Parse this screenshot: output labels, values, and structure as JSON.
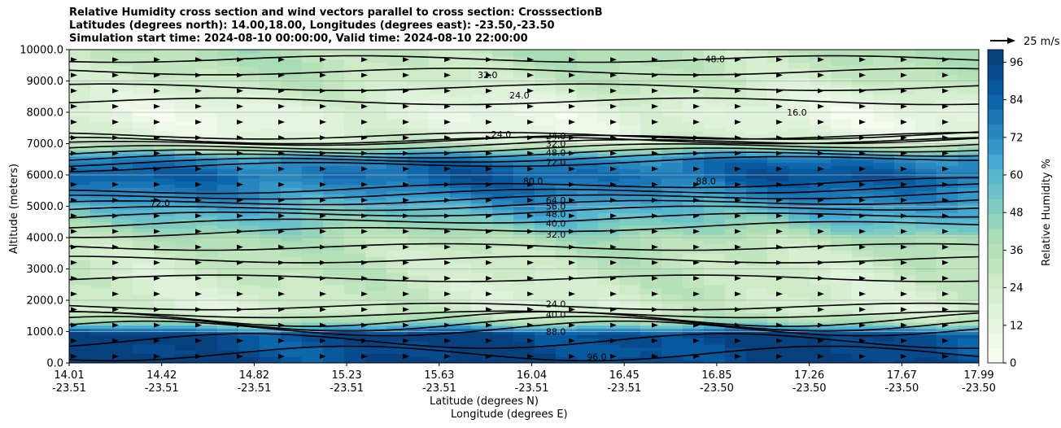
{
  "title_lines": [
    "Relative Humidity cross section and wind vectors parallel to cross section: CrosssectionB",
    "Latitudes (degrees north): 14.00,18.00, Longitudes (degrees east): -23.50,-23.50",
    "Simulation start time: 2024-08-10 00:00:00, Valid time: 2024-08-10 22:00:00"
  ],
  "chart_data": {
    "type": "heatmap",
    "title": "Relative Humidity cross section and wind vectors parallel to cross section: CrosssectionB",
    "ylabel": "Altitude (meters)",
    "xlabel_lines": [
      "Latitude (degrees N)",
      "Longitude (degrees E)"
    ],
    "ylim": [
      0,
      10000
    ],
    "yticks": [
      "0.0",
      "1000.0",
      "2000.0",
      "3000.0",
      "4000.0",
      "5000.0",
      "6000.0",
      "7000.0",
      "8000.0",
      "9000.0",
      "10000.0"
    ],
    "xticks": [
      {
        "lat": "14.01",
        "lon": "-23.51"
      },
      {
        "lat": "14.42",
        "lon": "-23.51"
      },
      {
        "lat": "14.82",
        "lon": "-23.51"
      },
      {
        "lat": "15.23",
        "lon": "-23.51"
      },
      {
        "lat": "15.63",
        "lon": "-23.51"
      },
      {
        "lat": "16.04",
        "lon": "-23.51"
      },
      {
        "lat": "16.45",
        "lon": "-23.51"
      },
      {
        "lat": "16.85",
        "lon": "-23.50"
      },
      {
        "lat": "17.26",
        "lon": "-23.50"
      },
      {
        "lat": "17.67",
        "lon": "-23.50"
      },
      {
        "lat": "17.99",
        "lon": "-23.50"
      }
    ],
    "grid": "horizontal",
    "colorbar": {
      "label": "Relative Humidity %",
      "ticks": [
        "0",
        "12",
        "24",
        "36",
        "48",
        "60",
        "72",
        "84",
        "96"
      ],
      "range": [
        0,
        100
      ],
      "colors": [
        "#f7fcf0",
        "#eef8e9",
        "#e6f5e1",
        "#dff2da",
        "#d6efd0",
        "#cdebc6",
        "#c1e6be",
        "#b5e1b8",
        "#a8ddb5",
        "#94d4ba",
        "#7ecbc0",
        "#6bc3c9",
        "#57b7cf",
        "#44a8d0",
        "#3597c8",
        "#2887bf",
        "#1b77b6",
        "#0e66ab",
        "#08589e",
        "#084a8e",
        "#08407e"
      ]
    },
    "vector_key": "25 m/s",
    "vertical_profile": [
      {
        "alt": 0,
        "rh": 96
      },
      {
        "alt": 400,
        "rh": 92
      },
      {
        "alt": 900,
        "rh": 96
      },
      {
        "alt": 1300,
        "rh": 40
      },
      {
        "alt": 1700,
        "rh": 22
      },
      {
        "alt": 2500,
        "rh": 26
      },
      {
        "alt": 3500,
        "rh": 30
      },
      {
        "alt": 4000,
        "rh": 36
      },
      {
        "alt": 4500,
        "rh": 48
      },
      {
        "alt": 5000,
        "rh": 60
      },
      {
        "alt": 5500,
        "rh": 72
      },
      {
        "alt": 6000,
        "rh": 82
      },
      {
        "alt": 6500,
        "rh": 72
      },
      {
        "alt": 7000,
        "rh": 24
      },
      {
        "alt": 7500,
        "rh": 14
      },
      {
        "alt": 8000,
        "rh": 12
      },
      {
        "alt": 8500,
        "rh": 20
      },
      {
        "alt": 9000,
        "rh": 28
      },
      {
        "alt": 10000,
        "rh": 34
      }
    ],
    "contour_labels": [
      {
        "x": 0.535,
        "alt": 1880,
        "text": "24.0"
      },
      {
        "x": 0.535,
        "alt": 1540,
        "text": "40.0"
      },
      {
        "x": 0.535,
        "alt": 1000,
        "text": "88.0"
      },
      {
        "x": 0.535,
        "alt": 4100,
        "text": "32.0"
      },
      {
        "x": 0.535,
        "alt": 4450,
        "text": "40.0"
      },
      {
        "x": 0.535,
        "alt": 4750,
        "text": "48.0"
      },
      {
        "x": 0.535,
        "alt": 5000,
        "text": "56.0"
      },
      {
        "x": 0.535,
        "alt": 5200,
        "text": "64.0"
      },
      {
        "x": 0.535,
        "alt": 6400,
        "text": "72.0"
      },
      {
        "x": 0.535,
        "alt": 6720,
        "text": "48.0"
      },
      {
        "x": 0.535,
        "alt": 7000,
        "text": "32.0"
      },
      {
        "x": 0.535,
        "alt": 7250,
        "text": "24.0"
      },
      {
        "x": 0.475,
        "alt": 7300,
        "text": "24.0"
      },
      {
        "x": 0.495,
        "alt": 8540,
        "text": "24.0"
      },
      {
        "x": 0.46,
        "alt": 9200,
        "text": "32.0"
      },
      {
        "x": 0.51,
        "alt": 5800,
        "text": "80.0"
      },
      {
        "x": 0.7,
        "alt": 5800,
        "text": "88.0"
      },
      {
        "x": 0.1,
        "alt": 5100,
        "text": "72.0"
      },
      {
        "x": 0.8,
        "alt": 8000,
        "text": "16.0"
      },
      {
        "x": 0.71,
        "alt": 9700,
        "text": "48.0"
      },
      {
        "x": 0.58,
        "alt": 200,
        "text": "96.0"
      }
    ]
  }
}
